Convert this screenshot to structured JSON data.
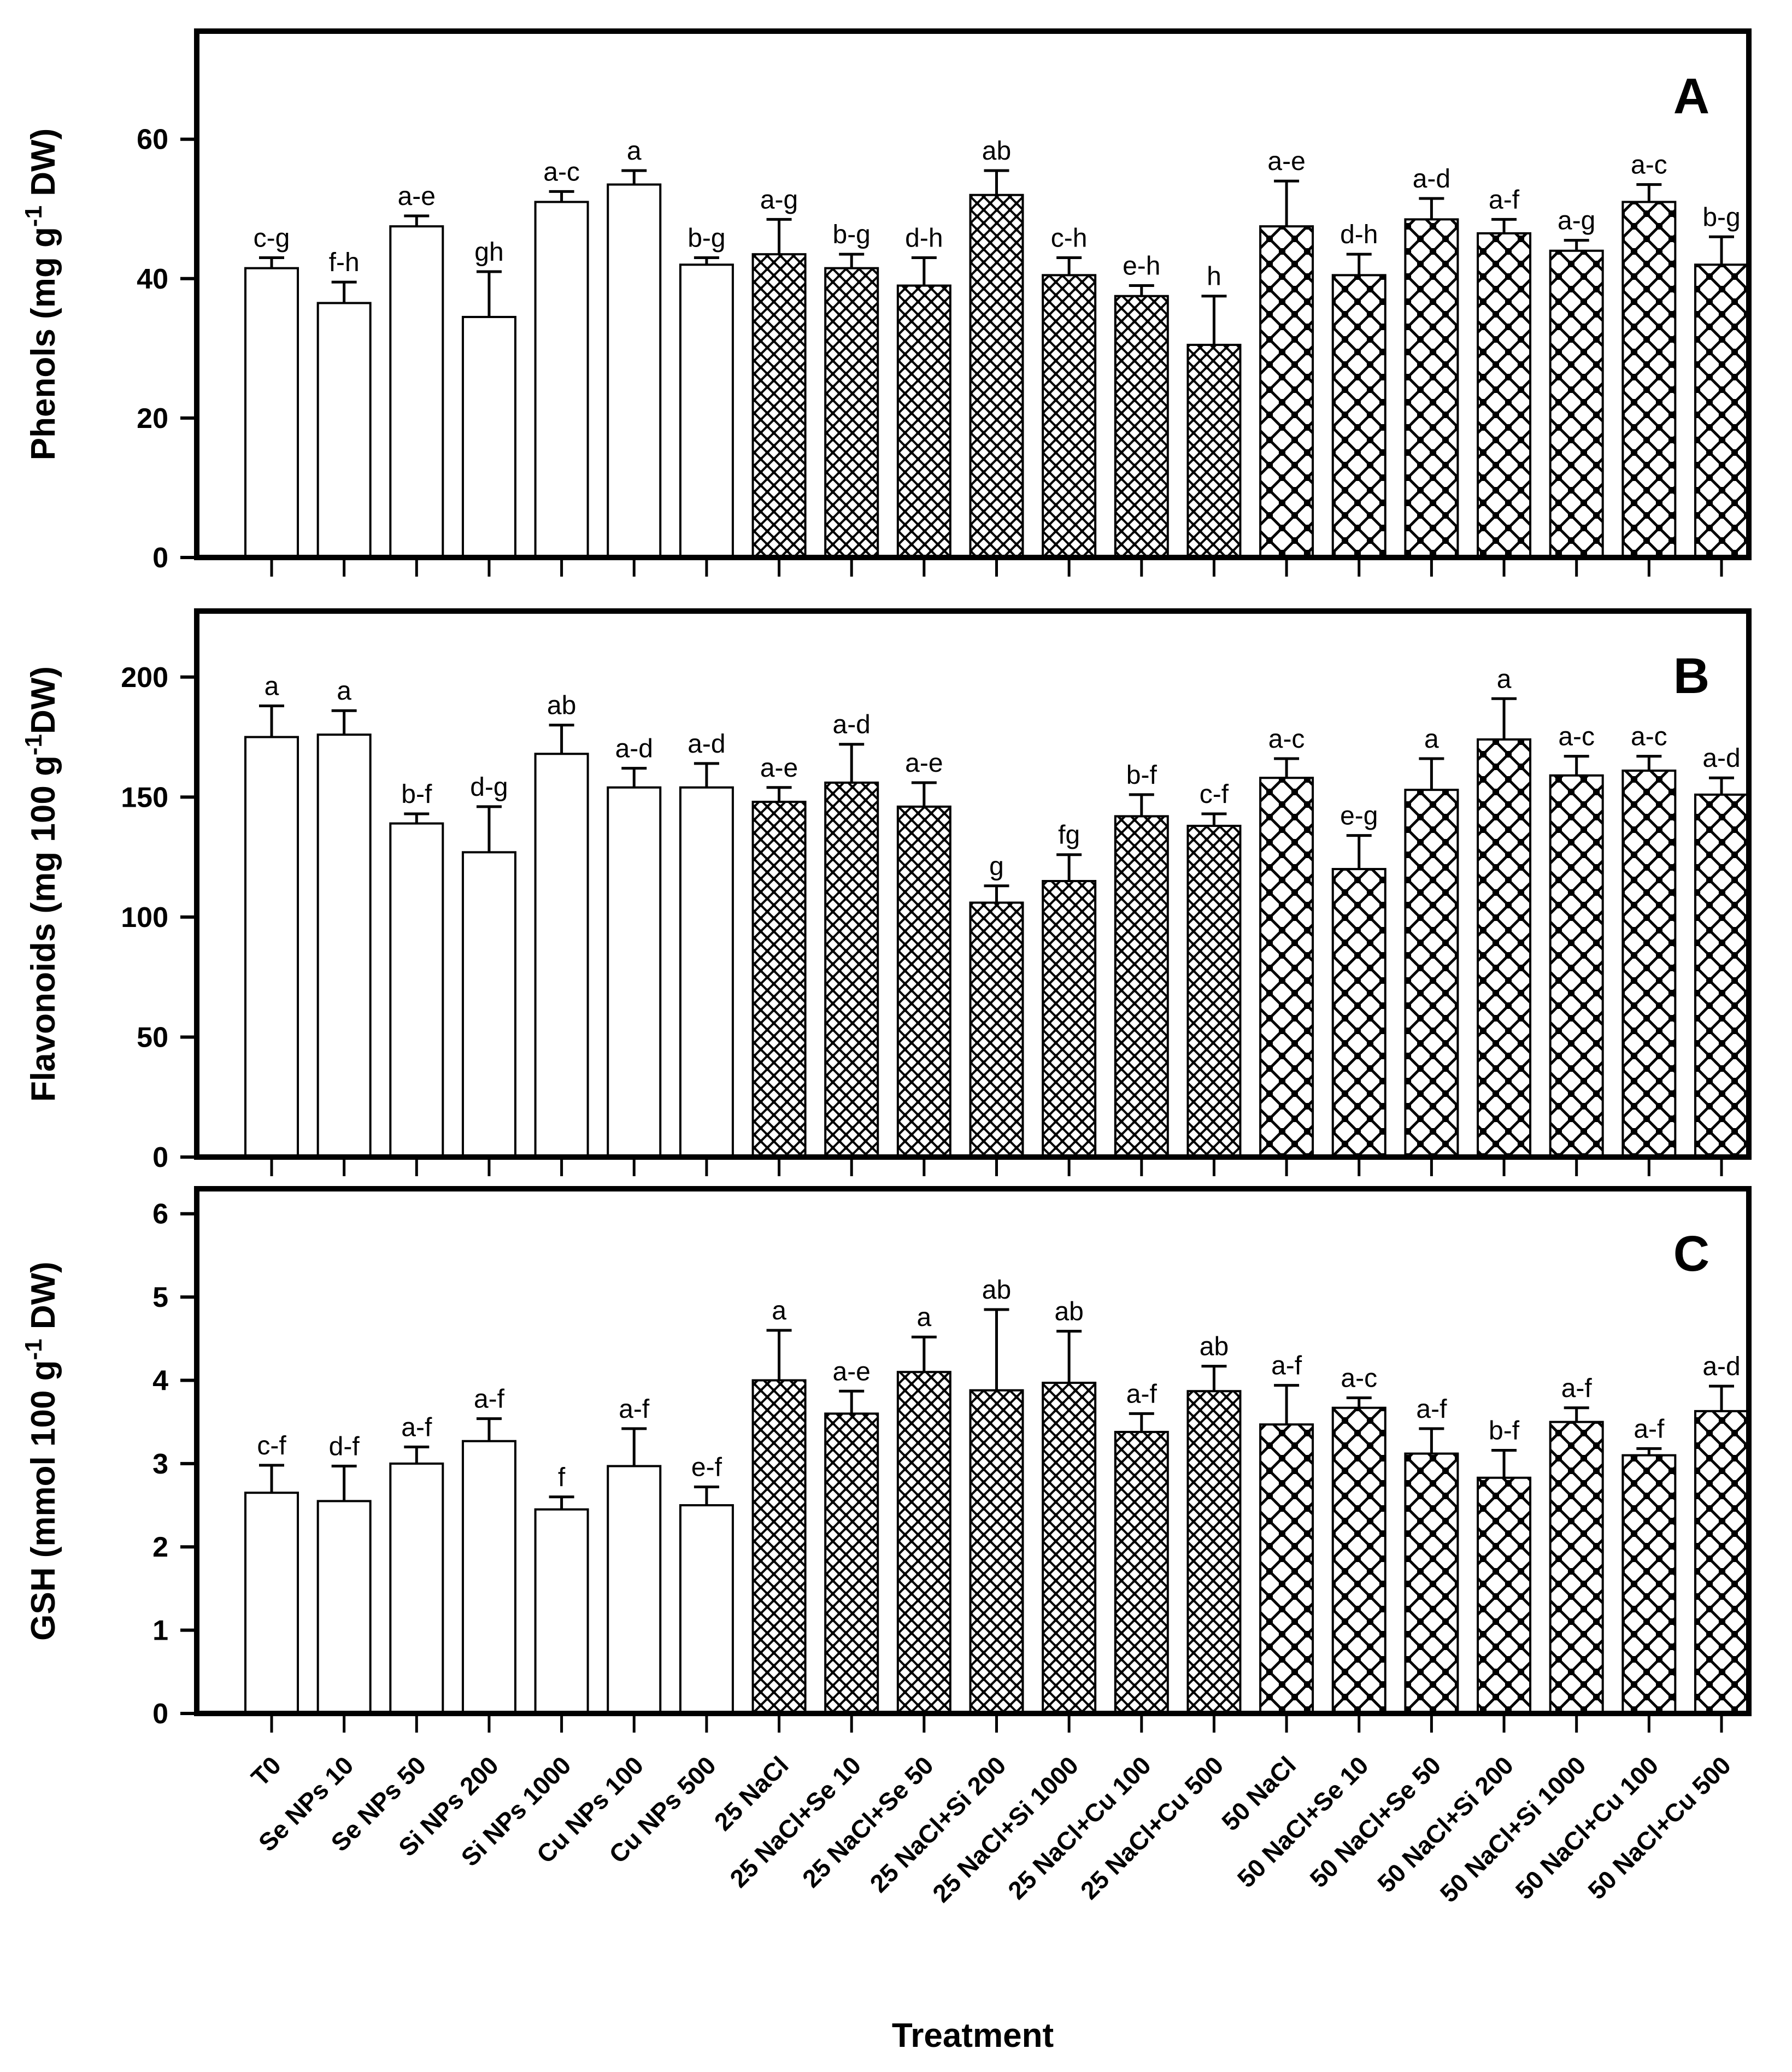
{
  "figure_title": "",
  "chart_data": {
    "type": "bar",
    "x_title": "Treatment",
    "categories": [
      "T0",
      "Se NPs 10",
      "Se NPs 50",
      "Si NPs 200",
      "Si NPs 1000",
      "Cu NPs 100",
      "Cu NPs 500",
      "25 NaCl",
      "25 NaCl+Se 10",
      "25 NaCl+Se 50",
      "25 NaCl+Si 200",
      "25 NaCl+Si 1000",
      "25 NaCl+Cu 100",
      "25 NaCl+Cu 500",
      "50 NaCl",
      "50 NaCl+Se 10",
      "50 NaCl+Se 50",
      "50 NaCl+Si 200",
      "50 NaCl+Si 1000",
      "50 NaCl+Cu 100",
      "50 NaCl+Cu 500"
    ],
    "groups": [
      {
        "name": "no-salt-control",
        "pattern": "plain",
        "start": 0,
        "end": 6
      },
      {
        "name": "25-NaCl-series",
        "pattern": "fine-crosshatch",
        "start": 7,
        "end": 13
      },
      {
        "name": "50-NaCl-series",
        "pattern": "coarse-crosshatch",
        "start": 14,
        "end": 20
      }
    ],
    "colors": {
      "bar_outline": "#000000",
      "bar_fill": "#ffffff",
      "text": "#000000",
      "background": "#ffffff"
    },
    "legend_position": "none",
    "grid": false,
    "panels": [
      {
        "label": "A",
        "ylabel": {
          "pre": "Phenols (mg g",
          "sup": "-1",
          "post": " DW)"
        },
        "ylim": [
          0,
          75.5
        ],
        "yticks": [
          0,
          20,
          40,
          60
        ],
        "values": [
          41.5,
          36.5,
          47.5,
          34.5,
          51,
          53.5,
          42,
          43.5,
          41.5,
          39,
          52,
          40.5,
          37.5,
          30.5,
          47.5,
          40.5,
          48.5,
          46.5,
          44,
          51,
          42
        ],
        "errors": [
          1.5,
          3,
          1.5,
          6.5,
          1.5,
          2,
          1,
          5,
          2,
          4,
          3.5,
          2.5,
          1.5,
          7,
          6.5,
          3,
          3,
          2,
          1.5,
          2.5,
          4
        ],
        "letters": [
          "c-g",
          "f-h",
          "a-e",
          "gh",
          "a-c",
          "a",
          "b-g",
          "a-g",
          "b-g",
          "d-h",
          "ab",
          "c-h",
          "e-h",
          "h",
          "a-e",
          "d-h",
          "a-d",
          "a-f",
          "a-g",
          "a-c",
          "b-g"
        ]
      },
      {
        "label": "B",
        "ylabel": {
          "pre": "Flavonoids (mg 100 g",
          "sup": "-1",
          "post": "DW)"
        },
        "ylim": [
          0,
          227.5
        ],
        "yticks": [
          0,
          50,
          100,
          150,
          200
        ],
        "values": [
          175,
          176,
          139,
          127,
          168,
          154,
          154,
          148,
          156,
          146,
          106,
          115,
          142,
          138,
          158,
          120,
          153,
          174,
          159,
          161,
          151
        ],
        "errors": [
          13,
          10,
          4,
          19,
          12,
          8,
          10,
          6,
          16,
          10,
          7,
          11,
          9,
          5,
          8,
          14,
          13,
          17,
          8,
          6,
          7
        ],
        "letters": [
          "a",
          "a",
          "b-f",
          "d-g",
          "ab",
          "a-d",
          "a-d",
          "a-e",
          "a-d",
          "a-e",
          "g",
          "fg",
          "b-f",
          "c-f",
          "a-c",
          "e-g",
          "a",
          "a",
          "a-c",
          "a-c",
          "a-d"
        ]
      },
      {
        "label": "C",
        "ylabel": {
          "pre": "GSH (mmol 100 g",
          "sup": "-1",
          "post": " DW)"
        },
        "ylim": [
          0,
          6.3
        ],
        "yticks": [
          0,
          1,
          2,
          3,
          4,
          5,
          6
        ],
        "values": [
          2.65,
          2.55,
          3.0,
          3.27,
          2.45,
          2.97,
          2.5,
          4.0,
          3.6,
          4.1,
          3.88,
          3.97,
          3.38,
          3.87,
          3.47,
          3.67,
          3.12,
          2.83,
          3.5,
          3.1,
          3.63
        ],
        "errors": [
          0.33,
          0.42,
          0.2,
          0.27,
          0.15,
          0.45,
          0.22,
          0.6,
          0.27,
          0.42,
          0.97,
          0.62,
          0.22,
          0.3,
          0.47,
          0.12,
          0.3,
          0.33,
          0.17,
          0.08,
          0.3
        ],
        "letters": [
          "c-f",
          "d-f",
          "a-f",
          "a-f",
          "f",
          "a-f",
          "e-f",
          "a",
          "a-e",
          "a",
          "ab",
          "ab",
          "a-f",
          "ab",
          "a-f",
          "a-c",
          "a-f",
          "b-f",
          "a-f",
          "a-f",
          "a-d"
        ]
      }
    ]
  }
}
